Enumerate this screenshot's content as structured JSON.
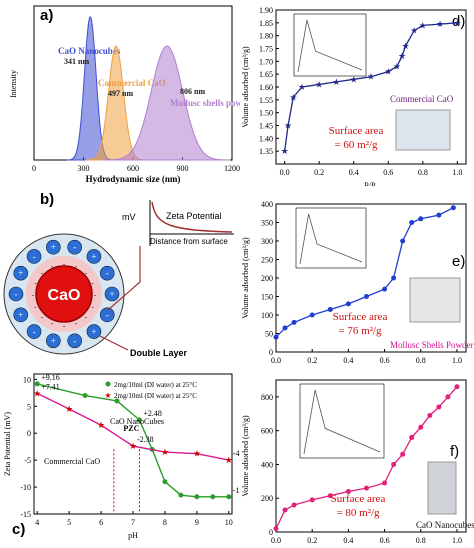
{
  "chart_data": [
    {
      "panel": "a",
      "type": "area",
      "label": "a)",
      "xlabel": "Hydrodynamic size (nm)",
      "ylabel": "Intensity",
      "xlim": [
        0,
        1200
      ],
      "xticks": [
        0,
        300,
        600,
        900,
        1200
      ],
      "series": [
        {
          "name": "CaO Nanocubes",
          "peak_label": "341 nm",
          "center": 341,
          "width": 35,
          "height": 0.93,
          "color": "#3f4fd0"
        },
        {
          "name": "Commercial CaO",
          "peak_label": "497 nm",
          "center": 497,
          "width": 45,
          "height": 0.74,
          "color": "#f0a040"
        },
        {
          "name": "Mollusc shells powder",
          "peak_label": "806 nm",
          "center": 806,
          "width": 95,
          "height": 0.74,
          "color": "#b080d0"
        }
      ]
    },
    {
      "panel": "c",
      "type": "line",
      "label": "c)",
      "xlabel": "pH",
      "ylabel": "Zeta Potential (mV)",
      "xlim": [
        3.9,
        10.1
      ],
      "ylim": [
        -15,
        11
      ],
      "xticks": [
        4,
        5,
        6,
        7,
        8,
        9,
        10
      ],
      "yticks": [
        10,
        5,
        0,
        -5,
        -10,
        -15
      ],
      "legend": [
        "2mg/10ml (DI water) at 25°C",
        "2mg/10ml (DI water) at 25°C"
      ],
      "annotations": [
        "CaO NanoCubes",
        "Commercial CaO",
        "PZC"
      ],
      "series": [
        {
          "name": "CaO NanoCubes",
          "color": "#2a9d2a",
          "x": [
            4,
            5.5,
            6.5,
            7.2,
            7.6,
            8.0,
            8.5,
            9.0,
            9.5,
            10.0
          ],
          "y": [
            9.16,
            7.0,
            6.0,
            2.48,
            -3.0,
            -9.0,
            -11.5,
            -11.8,
            -11.8,
            -11.8
          ],
          "labels": [
            "+9.16",
            "",
            "",
            "+2.48",
            "",
            "",
            "",
            "",
            "",
            "-11.8"
          ]
        },
        {
          "name": "Commercial CaO",
          "color": "#d81b8c",
          "x": [
            4,
            5.0,
            6.0,
            7.0,
            8.0,
            9.0,
            10.0
          ],
          "y": [
            7.41,
            4.5,
            1.5,
            -2.38,
            -3.5,
            -3.8,
            -4.98
          ],
          "labels": [
            "+7.41",
            "",
            "",
            "-2.38",
            "",
            "",
            "-4.98"
          ]
        }
      ]
    },
    {
      "panel": "d",
      "type": "line",
      "label": "d)",
      "xlabel": "P/Pₒ",
      "ylabel": "Volume adsorbed (cm³/g)",
      "xlim": [
        -0.05,
        1.05
      ],
      "ylim": [
        1.3,
        1.9
      ],
      "xticks": [
        0.0,
        0.2,
        0.4,
        0.6,
        0.8,
        1.0
      ],
      "yticks": [
        1.35,
        1.4,
        1.45,
        1.5,
        1.55,
        1.6,
        1.65,
        1.7,
        1.75,
        1.8,
        1.85,
        1.9
      ],
      "series": [
        {
          "name": "Commercial CaO",
          "color": "#1f2a8a",
          "x": [
            0.0,
            0.02,
            0.05,
            0.1,
            0.2,
            0.3,
            0.4,
            0.5,
            0.6,
            0.65,
            0.68,
            0.7,
            0.75,
            0.8,
            0.9,
            1.0
          ],
          "y": [
            1.35,
            1.45,
            1.56,
            1.6,
            1.61,
            1.62,
            1.63,
            1.64,
            1.66,
            1.68,
            1.72,
            1.76,
            1.82,
            1.84,
            1.845,
            1.85
          ]
        }
      ],
      "annotations": [
        "Commercial CaO",
        "Surface area",
        "= 60 m²/g"
      ]
    },
    {
      "panel": "e",
      "type": "line",
      "label": "e)",
      "xlabel": "P/Pₒ",
      "ylabel": "Volume adsorbed (cm³/g)",
      "xlim": [
        0,
        1.05
      ],
      "ylim": [
        0,
        400
      ],
      "xticks": [
        0.0,
        0.2,
        0.4,
        0.6,
        0.8,
        1.0
      ],
      "yticks": [
        0,
        50,
        100,
        150,
        200,
        250,
        300,
        350,
        400
      ],
      "series": [
        {
          "name": "Mollusc Shells Powder",
          "color": "#1f3fd0",
          "x": [
            0.0,
            0.05,
            0.1,
            0.2,
            0.3,
            0.4,
            0.5,
            0.6,
            0.65,
            0.7,
            0.75,
            0.8,
            0.9,
            0.98
          ],
          "y": [
            40,
            65,
            80,
            100,
            115,
            130,
            150,
            170,
            200,
            300,
            350,
            360,
            370,
            390
          ]
        }
      ],
      "annotations": [
        "Surface area",
        "= 76 m²/g",
        "Mollusc Shells Powder"
      ]
    },
    {
      "panel": "f",
      "type": "line",
      "label": "f)",
      "xlabel": "P/Pₒ",
      "ylabel": "Volume adsorbed (cm³/g)",
      "xlim": [
        0,
        1.05
      ],
      "ylim": [
        0,
        900
      ],
      "xticks": [
        0.0,
        0.2,
        0.4,
        0.6,
        0.8,
        1.0
      ],
      "yticks": [
        0,
        200,
        400,
        600,
        800
      ],
      "series": [
        {
          "name": "CaO Nanocubes",
          "color": "#e0207a",
          "x": [
            0.0,
            0.05,
            0.1,
            0.2,
            0.3,
            0.4,
            0.5,
            0.6,
            0.65,
            0.7,
            0.75,
            0.8,
            0.85,
            0.9,
            0.95,
            1.0
          ],
          "y": [
            20,
            130,
            160,
            190,
            215,
            240,
            260,
            290,
            400,
            460,
            560,
            620,
            690,
            740,
            800,
            860
          ]
        }
      ],
      "annotations": [
        "Surface area",
        "= 80 m²/g",
        "CaO Nanocubes"
      ]
    }
  ],
  "diagram_b": {
    "label": "b)",
    "core_label": "CaO",
    "zeta_label": "Zeta Potential",
    "mv_label": "mV",
    "distance_label": "Distance from surface",
    "double_layer_label": "Double Layer"
  }
}
